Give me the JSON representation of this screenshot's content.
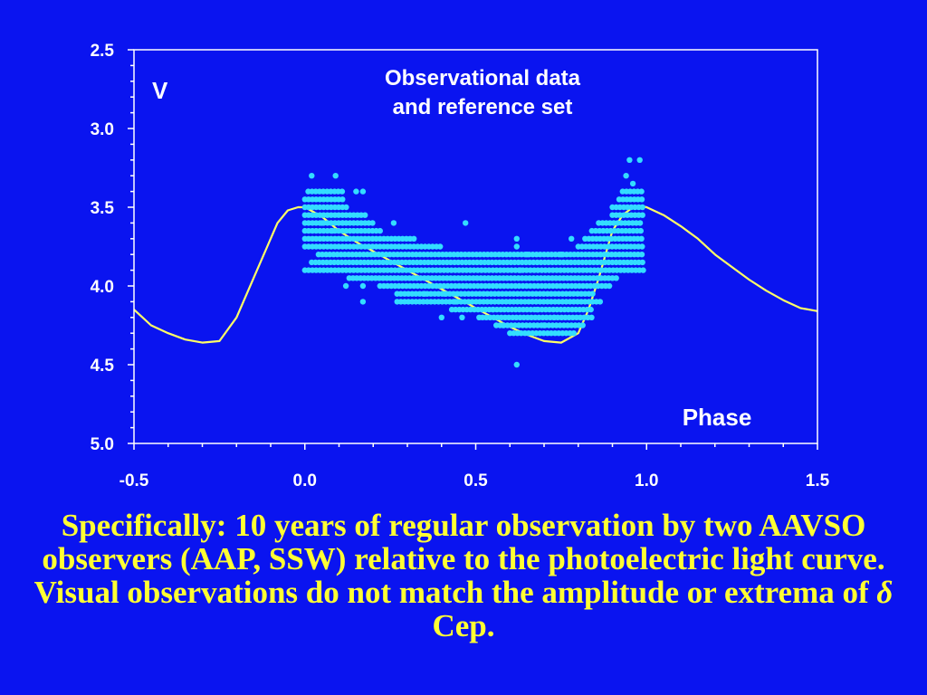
{
  "slide": {
    "caption_main": "Specifically: 10 years of regular observation by two AAVSO observers (AAP, SSW) relative to the photoelectric light curve. Visual observations do not match the amplitude or extrema of ",
    "caption_symbol": "δ",
    "caption_end": " Cep."
  },
  "chart_data": {
    "type": "scatter",
    "title_lines": [
      "Observational data",
      "and reference set"
    ],
    "xlabel": "Phase",
    "ylabel": "V",
    "xlim": [
      -0.5,
      1.5
    ],
    "ylim": [
      2.5,
      5.0
    ],
    "y_inverted": true,
    "x_ticks": [
      "-0.5",
      "0.0",
      "0.5",
      "1.0",
      "1.5"
    ],
    "y_ticks": [
      "2.5",
      "3.0",
      "3.5",
      "4.0",
      "4.5",
      "5.0"
    ],
    "grid": false,
    "colors": {
      "background": "#0a14f0",
      "reference_curve": "#ffff66",
      "observations": "#33ddff",
      "axes": "#ffffff",
      "caption": "#ffff33"
    },
    "reference_curve": {
      "x": [
        -0.5,
        -0.45,
        -0.4,
        -0.35,
        -0.3,
        -0.25,
        -0.2,
        -0.17,
        -0.14,
        -0.11,
        -0.08,
        -0.05,
        -0.02,
        0.0,
        0.05,
        0.1,
        0.15,
        0.2,
        0.25,
        0.3,
        0.35,
        0.4,
        0.45,
        0.5,
        0.55,
        0.6,
        0.65,
        0.7,
        0.75,
        0.8,
        0.83,
        0.86,
        0.88,
        0.9,
        0.93,
        0.96,
        0.98,
        1.0,
        1.05,
        1.1,
        1.15,
        1.2,
        1.25,
        1.3,
        1.35,
        1.4,
        1.45,
        1.5
      ],
      "y": [
        4.15,
        4.25,
        4.3,
        4.34,
        4.36,
        4.35,
        4.2,
        4.05,
        3.9,
        3.75,
        3.6,
        3.52,
        3.5,
        3.5,
        3.56,
        3.65,
        3.72,
        3.78,
        3.84,
        3.9,
        3.96,
        4.02,
        4.08,
        4.14,
        4.2,
        4.26,
        4.31,
        4.35,
        4.36,
        4.3,
        4.15,
        3.95,
        3.8,
        3.65,
        3.55,
        3.5,
        3.49,
        3.5,
        3.55,
        3.62,
        3.7,
        3.8,
        3.88,
        3.96,
        4.03,
        4.09,
        4.14,
        4.16
      ]
    },
    "observation_rows": [
      {
        "y": 3.4,
        "x_from": 0.01,
        "x_to": 0.11,
        "x2_from": 0.93,
        "x2_to": 0.99
      },
      {
        "y": 3.45,
        "x_from": 0.0,
        "x_to": 0.12,
        "x2_from": 0.92,
        "x2_to": 0.99
      },
      {
        "y": 3.5,
        "x_from": 0.0,
        "x_to": 0.13,
        "x2_from": 0.9,
        "x2_to": 0.99
      },
      {
        "y": 3.55,
        "x_from": 0.0,
        "x_to": 0.18,
        "x2_from": 0.9,
        "x2_to": 0.99
      },
      {
        "y": 3.6,
        "x_from": 0.0,
        "x_to": 0.2,
        "x2_from": 0.86,
        "x2_to": 0.99
      },
      {
        "y": 3.65,
        "x_from": 0.0,
        "x_to": 0.22,
        "x2_from": 0.84,
        "x2_to": 0.99
      },
      {
        "y": 3.7,
        "x_from": 0.0,
        "x_to": 0.32,
        "x2_from": 0.82,
        "x2_to": 0.99
      },
      {
        "y": 3.75,
        "x_from": 0.0,
        "x_to": 0.4,
        "x2_from": 0.8,
        "x2_to": 0.99
      },
      {
        "y": 3.8,
        "x_from": 0.04,
        "x_to": 0.99
      },
      {
        "y": 3.85,
        "x_from": 0.02,
        "x_to": 0.99
      },
      {
        "y": 3.9,
        "x_from": 0.0,
        "x_to": 0.99
      },
      {
        "y": 3.95,
        "x_from": 0.13,
        "x_to": 0.92
      },
      {
        "y": 4.0,
        "x_from": 0.22,
        "x_to": 0.9
      },
      {
        "y": 4.05,
        "x_from": 0.27,
        "x_to": 0.85
      },
      {
        "y": 4.1,
        "x_from": 0.27,
        "x_to": 0.87
      },
      {
        "y": 4.15,
        "x_from": 0.43,
        "x_to": 0.84
      },
      {
        "y": 4.2,
        "x_from": 0.52,
        "x_to": 0.84
      },
      {
        "y": 4.25,
        "x_from": 0.56,
        "x_to": 0.82
      },
      {
        "y": 4.3,
        "x_from": 0.6,
        "x_to": 0.79
      }
    ],
    "observation_points": [
      {
        "x": 0.02,
        "y": 3.3
      },
      {
        "x": 0.09,
        "y": 3.3
      },
      {
        "x": 0.15,
        "y": 3.4
      },
      {
        "x": 0.17,
        "y": 3.4
      },
      {
        "x": 0.05,
        "y": 3.6
      },
      {
        "x": 0.11,
        "y": 3.6
      },
      {
        "x": 0.26,
        "y": 3.6
      },
      {
        "x": 0.47,
        "y": 3.6
      },
      {
        "x": 0.08,
        "y": 3.65
      },
      {
        "x": 0.62,
        "y": 3.7
      },
      {
        "x": 0.78,
        "y": 3.7
      },
      {
        "x": 0.65,
        "y": 3.8
      },
      {
        "x": 0.62,
        "y": 3.75
      },
      {
        "x": 0.75,
        "y": 3.8
      },
      {
        "x": 0.63,
        "y": 3.9
      },
      {
        "x": 0.12,
        "y": 4.0
      },
      {
        "x": 0.17,
        "y": 4.0
      },
      {
        "x": 0.17,
        "y": 4.1
      },
      {
        "x": 0.35,
        "y": 4.05
      },
      {
        "x": 0.41,
        "y": 4.05
      },
      {
        "x": 0.44,
        "y": 4.1
      },
      {
        "x": 0.4,
        "y": 4.2
      },
      {
        "x": 0.46,
        "y": 4.2
      },
      {
        "x": 0.51,
        "y": 4.2
      },
      {
        "x": 0.55,
        "y": 4.15
      },
      {
        "x": 0.62,
        "y": 4.5
      },
      {
        "x": 0.58,
        "y": 4.25
      },
      {
        "x": 0.7,
        "y": 4.25
      },
      {
        "x": 0.95,
        "y": 3.2
      },
      {
        "x": 0.98,
        "y": 3.2
      },
      {
        "x": 0.94,
        "y": 3.3
      },
      {
        "x": 0.96,
        "y": 3.35
      },
      {
        "x": 0.68,
        "y": 4.15
      },
      {
        "x": 0.73,
        "y": 4.2
      }
    ]
  }
}
